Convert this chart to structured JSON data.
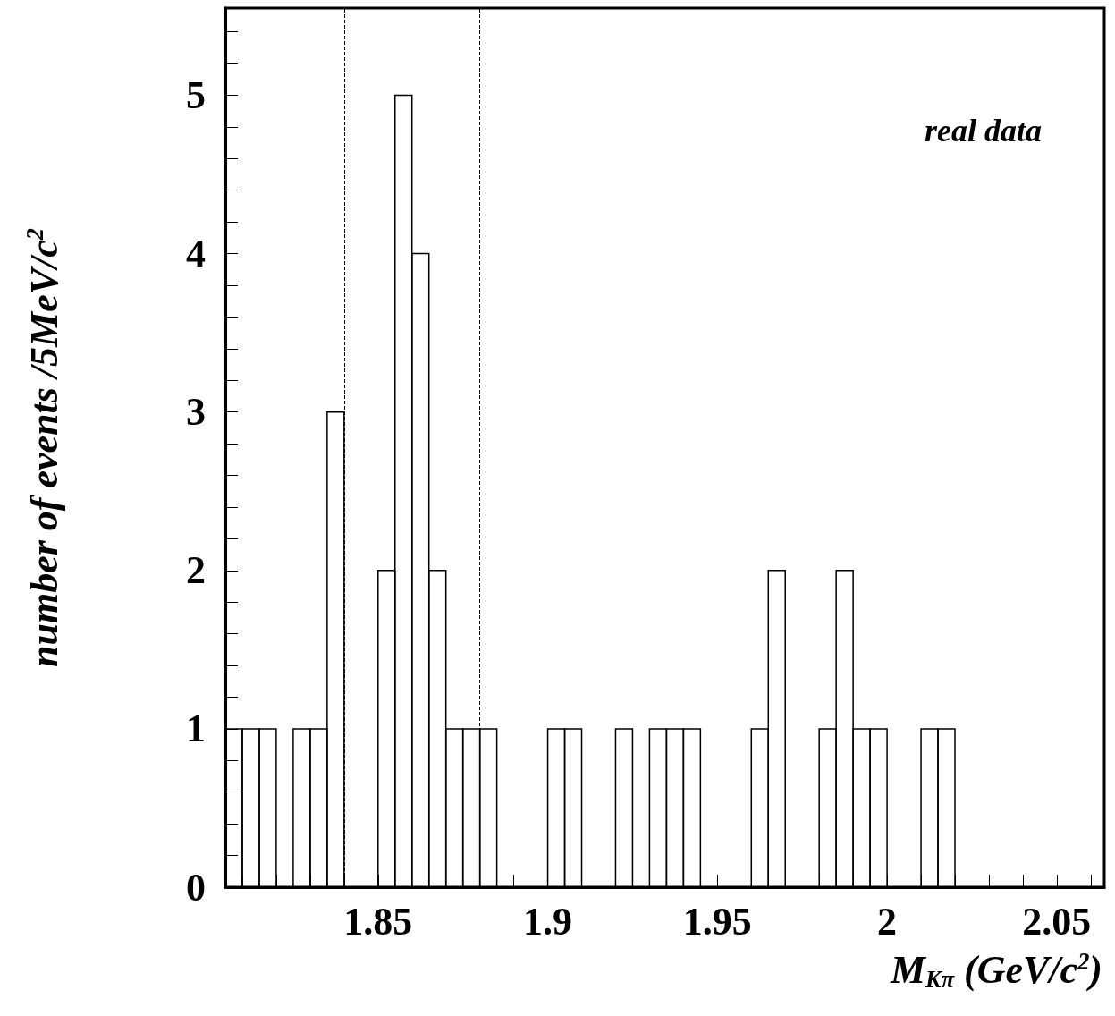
{
  "chart_data": {
    "type": "histogram",
    "xlabel": "M$_{Kπ}$ (GeV/c$^{2}$)",
    "ylabel": "number of events /5MeV/c$^{2}$",
    "annotations": [
      "real data"
    ],
    "bins": [
      1.805,
      1.81,
      1.815,
      1.82,
      1.825,
      1.83,
      1.835,
      1.84,
      1.845,
      1.85,
      1.855,
      1.86,
      1.865,
      1.87,
      1.875,
      1.88,
      1.885,
      1.89,
      1.895,
      1.9,
      1.905,
      1.91,
      1.915,
      1.92,
      1.925,
      1.93,
      1.935,
      1.94,
      1.945,
      1.95,
      1.955,
      1.96,
      1.965,
      1.97,
      1.975,
      1.98,
      1.985,
      1.99,
      1.995,
      2.0,
      2.005,
      2.01,
      2.015,
      2.02,
      2.025,
      2.03,
      2.035,
      2.04,
      2.045,
      2.05,
      2.055,
      2.06
    ],
    "values": [
      1,
      1,
      1,
      0,
      1,
      1,
      3,
      0,
      0,
      2,
      5,
      4,
      2,
      1,
      1,
      1,
      0,
      0,
      0,
      1,
      1,
      0,
      0,
      1,
      0,
      1,
      1,
      1,
      0,
      0,
      0,
      1,
      2,
      0,
      0,
      1,
      2,
      1,
      1,
      0,
      0,
      1,
      1,
      0,
      0,
      0,
      0,
      0,
      0,
      0,
      0
    ],
    "color": "#000000",
    "xlim": [
      1.805,
      2.064
    ],
    "xticks": [
      {
        "value": 1.81,
        "label": null
      },
      {
        "value": 1.82,
        "label": null
      },
      {
        "value": 1.83,
        "label": null
      },
      {
        "value": 1.84,
        "label": null
      },
      1.85,
      {
        "value": 1.86,
        "label": null
      },
      {
        "value": 1.87,
        "label": null
      },
      {
        "value": 1.88,
        "label": null
      },
      {
        "value": 1.89,
        "label": null
      },
      1.9,
      {
        "value": 1.91,
        "label": null
      },
      {
        "value": 1.92,
        "label": null
      },
      {
        "value": 1.93,
        "label": null
      },
      {
        "value": 1.94,
        "label": null
      },
      1.95,
      {
        "value": 1.96,
        "label": null
      },
      {
        "value": 1.97,
        "label": null
      },
      {
        "value": 1.98,
        "label": null
      },
      {
        "value": 1.99,
        "label": null
      },
      2,
      {
        "value": 2.01,
        "label": null
      },
      {
        "value": 2.02,
        "label": null
      },
      {
        "value": 2.03,
        "label": null
      },
      {
        "value": 2.04,
        "label": null
      },
      2.05,
      {
        "value": 2.06,
        "label": null
      }
    ],
    "ylim": [
      0,
      5.55
    ],
    "yticks": [
      0,
      {
        "value": 0.2,
        "label": null
      },
      {
        "value": 0.4,
        "label": null
      },
      {
        "value": 0.6,
        "label": null
      },
      {
        "value": 0.8,
        "label": null
      },
      1,
      {
        "value": 1.2,
        "label": null
      },
      {
        "value": 1.4,
        "label": null
      },
      {
        "value": 1.6,
        "label": null
      },
      {
        "value": 1.8,
        "label": null
      },
      2,
      {
        "value": 2.2,
        "label": null
      },
      {
        "value": 2.4,
        "label": null
      },
      {
        "value": 2.6,
        "label": null
      },
      {
        "value": 2.8,
        "label": null
      },
      3,
      {
        "value": 3.2,
        "label": null
      },
      {
        "value": 3.4,
        "label": null
      },
      {
        "value": 3.6,
        "label": null
      },
      {
        "value": 3.8,
        "label": null
      },
      4,
      {
        "value": 4.2,
        "label": null
      },
      {
        "value": 4.4,
        "label": null
      },
      {
        "value": 4.6,
        "label": null
      },
      {
        "value": 4.8,
        "label": null
      },
      5,
      {
        "value": 5.2,
        "label": null
      },
      {
        "value": 5.4,
        "label": null
      }
    ],
    "ref_lines": [
      {
        "axis": "x",
        "value": 1.84,
        "line_style": "dashed",
        "color": "#000000"
      },
      {
        "axis": "x",
        "value": 1.88,
        "line_style": "dashed",
        "color": "#000000"
      }
    ],
    "grid": false
  }
}
